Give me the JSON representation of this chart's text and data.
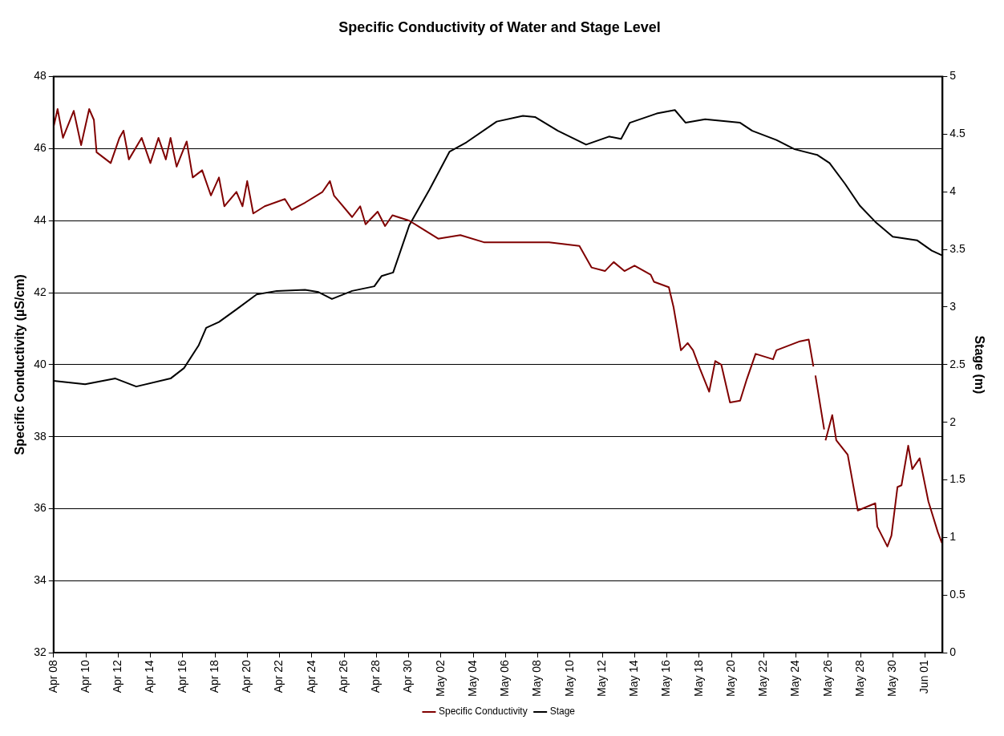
{
  "chart_data": {
    "type": "line",
    "title": "Specific Conductivity of Water and Stage Level",
    "ylabel": "Specific Conductivity (µS/cm)",
    "y2label": "Stage (m)",
    "xlim": [
      "--04-08",
      "--06-02T02:00"
    ],
    "xticks": [
      {
        "value": "--04-08",
        "label": "Apr 08"
      },
      {
        "value": "--04-10",
        "label": "Apr 10"
      },
      {
        "value": "--04-12",
        "label": "Apr 12"
      },
      {
        "value": "--04-14",
        "label": "Apr 14"
      },
      {
        "value": "--04-16",
        "label": "Apr 16"
      },
      {
        "value": "--04-18",
        "label": "Apr 18"
      },
      {
        "value": "--04-20",
        "label": "Apr 20"
      },
      {
        "value": "--04-22",
        "label": "Apr 22"
      },
      {
        "value": "--04-24",
        "label": "Apr 24"
      },
      {
        "value": "--04-26",
        "label": "Apr 26"
      },
      {
        "value": "--04-28",
        "label": "Apr 28"
      },
      {
        "value": "--04-30",
        "label": "Apr 30"
      },
      {
        "value": "--05-02",
        "label": "May 02"
      },
      {
        "value": "--05-04",
        "label": "May 04"
      },
      {
        "value": "--05-06",
        "label": "May 06"
      },
      {
        "value": "--05-08",
        "label": "May 08"
      },
      {
        "value": "--05-10",
        "label": "May 10"
      },
      {
        "value": "--05-12",
        "label": "May 12"
      },
      {
        "value": "--05-14",
        "label": "May 14"
      },
      {
        "value": "--05-16",
        "label": "May 16"
      },
      {
        "value": "--05-18",
        "label": "May 18"
      },
      {
        "value": "--05-20",
        "label": "May 20"
      },
      {
        "value": "--05-22",
        "label": "May 22"
      },
      {
        "value": "--05-24",
        "label": "May 24"
      },
      {
        "value": "--05-26",
        "label": "May 26"
      },
      {
        "value": "--05-28",
        "label": "May 28"
      },
      {
        "value": "--05-30",
        "label": "May 30"
      },
      {
        "value": "--06-01",
        "label": "Jun 01"
      }
    ],
    "ylim": [
      32,
      48
    ],
    "yticks": [
      32,
      34,
      36,
      38,
      40,
      42,
      44,
      46,
      48
    ],
    "y2lim": [
      0,
      5
    ],
    "y2ticks": [
      0,
      0.5,
      1,
      1.5,
      2,
      2.5,
      3,
      3.5,
      4,
      4.5,
      5
    ],
    "grid": "y",
    "legend": "bottom",
    "series": [
      {
        "name": "Specific Conductivity",
        "color": "#800000",
        "x": [
          "--04-08T00:00",
          "--04-08T06:00",
          "--04-08T14:00",
          "--04-09T06:00",
          "--04-09T17:00",
          "--04-10T05:00",
          "--04-10T12:00",
          "--04-10T16:00",
          "--04-11T13:00",
          "--04-12T02:00",
          "--04-12T08:00",
          "--04-12T16:00",
          "--04-13T11:00",
          "--04-14T00:00",
          "--04-14T12:00",
          "--04-14T23:00",
          "--04-15T06:00",
          "--04-15T15:00",
          "--04-16T06:00",
          "--04-16T15:00",
          "--04-17T05:00",
          "--04-17T18:00",
          "--04-18T06:00",
          "--04-18T14:00",
          "--04-19T08:00",
          "--04-19T17:00",
          "--04-20T00:00",
          "--04-20T09:00",
          "--04-21T02:00",
          "--04-22T08:00",
          "--04-22T18:00",
          "--04-23T14:00",
          "--04-24T16:00",
          "--04-25T03:00",
          "--04-25T09:00",
          "--04-26T12:00",
          "--04-27T00:00",
          "--04-27T08:00",
          "--04-28T02:00",
          "--04-28T13:00",
          "--04-29T00:00",
          "--04-30T01:00",
          "--04-30T18:00",
          "--05-01T20:00",
          "--05-03T05:00",
          "--05-04T16:00",
          "--05-06T08:00",
          "--05-08T17:00",
          "--05-10T14:00",
          "--05-11T08:00",
          "--05-12T04:00",
          "--05-12T17:00",
          "--05-13T09:00",
          "--05-14T00:00",
          "--05-15T00:00",
          "--05-15T05:00",
          "--05-16T03:00",
          "--05-16T10:00",
          "--05-16T21:00",
          "--05-17T07:00",
          "--05-17T15:00",
          "--05-18T01:00",
          "--05-18T15:00",
          "--05-19T00:00",
          "--05-19T09:00",
          "--05-19T22:00",
          "--05-20T13:00",
          "--05-20T23:00",
          "--05-21T12:00",
          "--05-22T14:00",
          "--05-22T19:00",
          "--05-24T06:00",
          "--05-24T19:00",
          "--05-25T02:00",
          "--05-25T03:00",
          "--05-25T05:00",
          "--05-25T18:00",
          "--05-25T19:00",
          "--05-25T20:00",
          "--05-26T06:00",
          "--05-26T12:00",
          "--05-27T05:00",
          "--05-27T20:00",
          "--05-28T22:00",
          "--05-29T01:00",
          "--05-29T16:00",
          "--05-29T22:00",
          "--05-30T07:00",
          "--05-30T13:00",
          "--05-30T23:00",
          "--05-31T05:00",
          "--05-31T16:00",
          "--06-01T05:00",
          "--06-01T19:00",
          "--06-02T01:00"
        ],
        "values": [
          46.6,
          47.1,
          46.3,
          47.05,
          46.1,
          47.1,
          46.8,
          45.9,
          45.6,
          46.3,
          46.5,
          45.7,
          46.3,
          45.6,
          46.3,
          45.7,
          46.3,
          45.5,
          46.2,
          45.2,
          45.4,
          44.7,
          45.2,
          44.4,
          44.8,
          44.4,
          45.1,
          44.2,
          44.4,
          44.6,
          44.3,
          44.5,
          44.8,
          45.1,
          44.7,
          44.1,
          44.4,
          43.9,
          44.25,
          43.85,
          44.15,
          44.0,
          43.8,
          43.5,
          43.6,
          43.4,
          43.4,
          43.4,
          43.3,
          42.7,
          42.6,
          42.85,
          42.6,
          42.75,
          42.5,
          42.3,
          42.15,
          41.6,
          40.4,
          40.6,
          40.4,
          39.9,
          39.25,
          40.1,
          40.0,
          38.95,
          39.0,
          39.6,
          40.3,
          40.15,
          40.4,
          40.65,
          40.7,
          39.95,
          null,
          39.7,
          38.2,
          null,
          37.9,
          38.6,
          37.9,
          37.5,
          35.95,
          36.15,
          35.5,
          34.95,
          35.25,
          36.6,
          36.65,
          37.75,
          37.1,
          37.4,
          36.2,
          35.35,
          35.05
        ]
      },
      {
        "name": "Stage",
        "color": "#000000",
        "axis": "y2",
        "x": [
          "--04-08T00:00",
          "--04-09T23:00",
          "--04-11T20:00",
          "--04-13T03:00",
          "--04-15T06:00",
          "--04-16T02:00",
          "--04-17T00:00",
          "--04-17T11:00",
          "--04-18T06:00",
          "--04-19T08:00",
          "--04-20T14:00",
          "--04-21T20:00",
          "--04-23T14:00",
          "--04-24T10:00",
          "--04-25T06:00",
          "--04-26T12:00",
          "--04-27T21:00",
          "--04-28T08:00",
          "--04-29T01:00",
          "--04-30T01:00",
          "--05-01T07:00",
          "--05-02T13:00",
          "--05-03T14:00",
          "--05-05T11:00",
          "--05-07T02:00",
          "--05-07T20:00",
          "--05-09T06:00",
          "--05-11T00:00",
          "--05-12T10:00",
          "--05-13T04:00",
          "--05-13T17:00",
          "--05-15T09:00",
          "--05-16T12:00",
          "--05-17T04:00",
          "--05-18T09:00",
          "--05-20T13:00",
          "--05-21T07:00",
          "--05-22T19:00",
          "--05-23T22:00",
          "--05-25T08:00",
          "--05-26T02:00",
          "--05-27T01:00",
          "--05-27T23:00",
          "--05-28T22:00",
          "--05-30T00:00",
          "--05-31T12:00",
          "--06-01T10:00",
          "--06-02T01:00"
        ],
        "values": [
          2.36,
          2.33,
          2.38,
          2.31,
          2.38,
          2.47,
          2.67,
          2.82,
          2.87,
          2.98,
          3.11,
          3.14,
          3.15,
          3.13,
          3.07,
          3.14,
          3.18,
          3.27,
          3.3,
          3.71,
          4.02,
          4.35,
          4.43,
          4.61,
          4.66,
          4.65,
          4.53,
          4.41,
          4.48,
          4.46,
          4.6,
          4.68,
          4.71,
          4.6,
          4.63,
          4.6,
          4.53,
          4.45,
          4.37,
          4.32,
          4.25,
          4.07,
          3.88,
          3.74,
          3.61,
          3.58,
          3.49,
          3.45
        ]
      }
    ]
  }
}
